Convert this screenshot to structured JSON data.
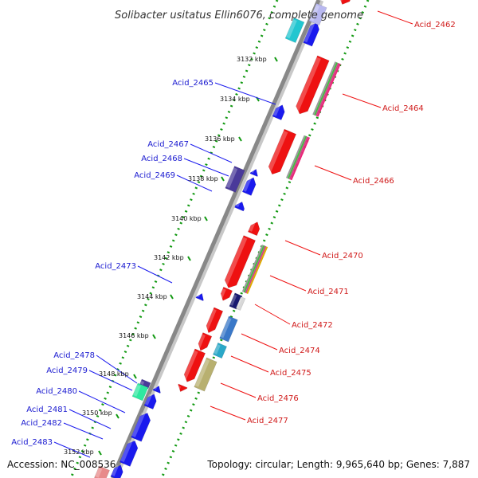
{
  "title": "Solibacter usitatus Ellin6076, complete genome",
  "footer": {
    "accession": "Accession: NC_008536",
    "info": "Topology: circular; Length: 9,965,640 bp; Genes: 7,887"
  },
  "scale": {
    "unit": "kbp",
    "ticks": [
      "3132 kbp",
      "3134 kbp",
      "3136 kbp",
      "3138 kbp",
      "3140 kbp",
      "3142 kbp",
      "3144 kbp",
      "3146 kbp",
      "3148 kbp",
      "3150 kbp",
      "3152 kbp"
    ]
  },
  "colors": {
    "reverse_strand_gene": "#1a1aee",
    "forward_strand_gene": "#ee1111",
    "reverse_label": "#1a1ad0",
    "forward_label": "#d01a1a",
    "backbone": "#888888",
    "track_dots": "#119911"
  },
  "genes": {
    "reverse_strand": [
      "Acid_2465",
      "Acid_2467",
      "Acid_2468",
      "Acid_2469",
      "Acid_2473",
      "Acid_2478",
      "Acid_2479",
      "Acid_2480",
      "Acid_2481",
      "Acid_2482",
      "Acid_2483"
    ],
    "forward_strand": [
      "Acid_2462",
      "Acid_2464",
      "Acid_2466",
      "Acid_2470",
      "Acid_2471",
      "Acid_2472",
      "Acid_2474",
      "Acid_2475",
      "Acid_2476",
      "Acid_2477"
    ]
  }
}
